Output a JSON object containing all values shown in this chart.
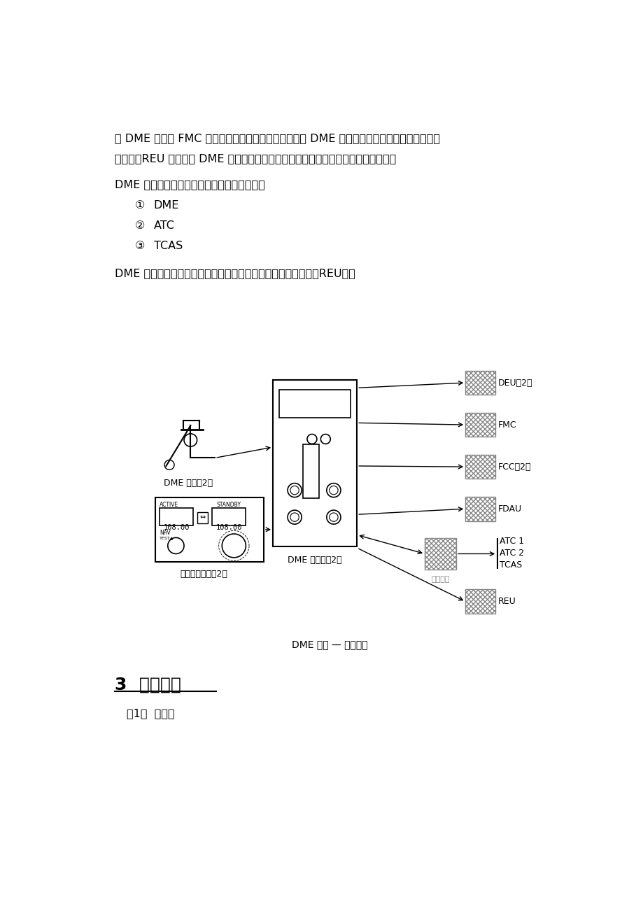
{
  "bg_color": "#ffffff",
  "text_color": "#000000",
  "para1": "用 DME 来计算 FMC 位置更新。飞行数据获取组件接收 DME 数据，将它格式化后送到飞行数据",
  "para2": "记录器。REU 接收来自 DME 台站的音频信号并送到驾驶舱头戴式收受话器和扬声器。",
  "para3": "DME 系统在下列组件间发送和接收抑制脉冲：",
  "list_items": [
    {
      "num": "①",
      "text": "DME"
    },
    {
      "num": "②",
      "text": "ATC"
    },
    {
      "num": "③",
      "text": "TCAS"
    }
  ],
  "para4": "DME 询问器接收台站音频标识符并将它们传送到遥控电子组件（REU）。",
  "diagram_caption": "DME 系统 — 总体描述",
  "label_antenna": "DME 天线（2）",
  "label_panel": "导航控制面板（2）",
  "label_interrogator": "DME 询问器（2）",
  "label_deu": "DEU（2）",
  "label_fmc": "FMC",
  "label_fcc": "FCC（2）",
  "label_fdau": "FDAU",
  "label_atc1": "ATC 1",
  "label_atc2": "ATC 2",
  "label_tcas": "TCAS",
  "label_reu": "REU",
  "label_channel": "同轴三通",
  "section_title": "3  部件位置",
  "sub_item": "（1）  驾驶舱"
}
